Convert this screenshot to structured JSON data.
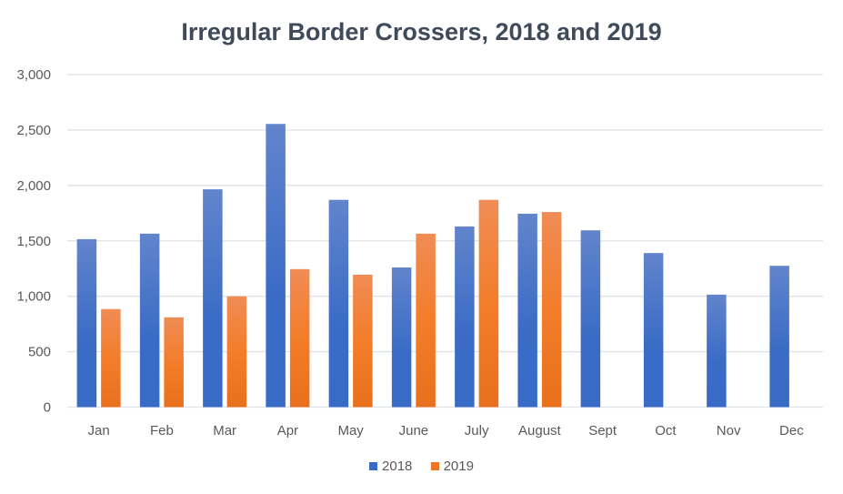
{
  "chart_data": {
    "type": "bar",
    "title": "Irregular Border Crossers, 2018 and 2019",
    "categories": [
      "Jan",
      "Feb",
      "Mar",
      "Apr",
      "May",
      "June",
      "July",
      "August",
      "Sept",
      "Oct",
      "Nov",
      "Dec"
    ],
    "series": [
      {
        "name": "2018",
        "color": "#3a6cc6",
        "values": [
          1515,
          1565,
          1965,
          2555,
          1870,
          1260,
          1630,
          1745,
          1595,
          1390,
          1015,
          1275
        ]
      },
      {
        "name": "2019",
        "color": "#ee7624",
        "values": [
          885,
          810,
          1000,
          1245,
          1195,
          1565,
          1870,
          1760,
          null,
          null,
          null,
          null
        ]
      }
    ],
    "ylim": [
      0,
      3000
    ],
    "yticks": [
      "0",
      "500",
      "1,000",
      "1,500",
      "2,000",
      "2,500",
      "3,000"
    ],
    "ytick_values": [
      0,
      500,
      1000,
      1500,
      2000,
      2500,
      3000
    ],
    "grid": true,
    "legend": "bottom"
  }
}
